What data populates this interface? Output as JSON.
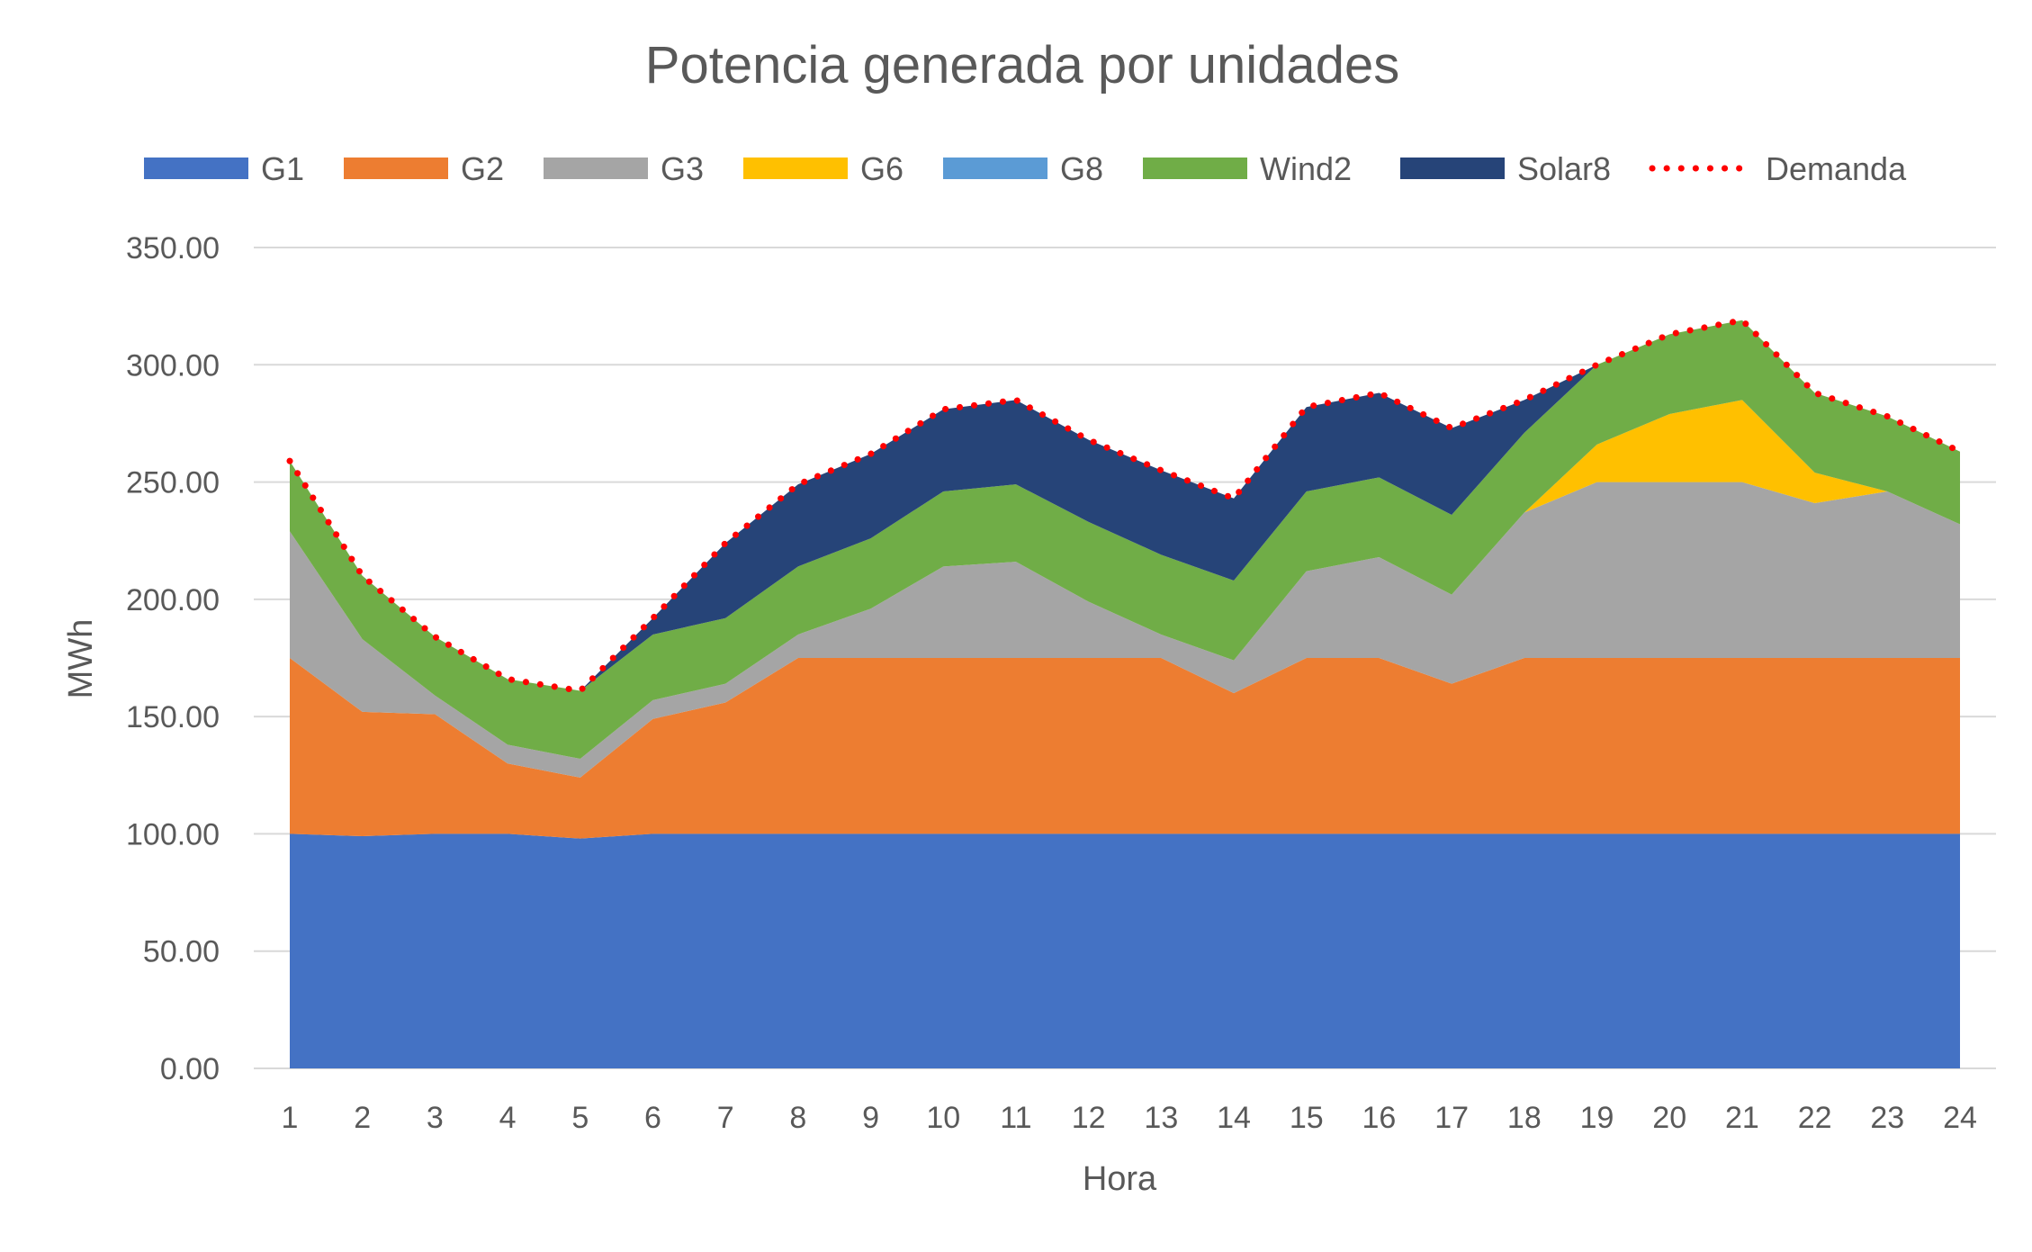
{
  "chart_data": {
    "type": "area",
    "stacked": true,
    "title": "Potencia generada por unidades",
    "xlabel": "Hora",
    "ylabel": "MWh",
    "ylim": [
      0,
      350
    ],
    "ytick_step": 50,
    "yticks": [
      "0.00",
      "50.00",
      "100.00",
      "150.00",
      "200.00",
      "250.00",
      "300.00",
      "350.00"
    ],
    "grid": true,
    "legend_position": "top",
    "categories": [
      "1",
      "2",
      "3",
      "4",
      "5",
      "6",
      "7",
      "8",
      "9",
      "10",
      "11",
      "12",
      "13",
      "14",
      "15",
      "16",
      "17",
      "18",
      "19",
      "20",
      "21",
      "22",
      "23",
      "24"
    ],
    "series": [
      {
        "name": "G1",
        "color": "#4472c4",
        "values": [
          100,
          99,
          100,
          100,
          98,
          100,
          100,
          100,
          100,
          100,
          100,
          100,
          100,
          100,
          100,
          100,
          100,
          100,
          100,
          100,
          100,
          100,
          100,
          100
        ]
      },
      {
        "name": "G2",
        "color": "#ed7d31",
        "values": [
          75,
          53,
          51,
          30,
          26,
          49,
          56,
          75,
          75,
          75,
          75,
          75,
          75,
          60,
          75,
          75,
          64,
          75,
          75,
          75,
          75,
          75,
          75,
          75
        ]
      },
      {
        "name": "G3",
        "color": "#a5a5a5",
        "values": [
          54,
          31,
          8,
          8,
          8,
          8,
          8,
          10,
          21,
          39,
          41,
          24,
          10,
          14,
          37,
          43,
          38,
          62,
          75,
          75,
          75,
          66,
          71,
          57
        ]
      },
      {
        "name": "G6",
        "color": "#ffc000",
        "values": [
          0,
          0,
          0,
          0,
          0,
          0,
          0,
          0,
          0,
          0,
          0,
          0,
          0,
          0,
          0,
          0,
          0,
          0,
          16,
          29,
          35,
          13,
          0,
          0
        ]
      },
      {
        "name": "G8",
        "color": "#5b9bd5",
        "values": [
          0,
          0,
          0,
          0,
          0,
          0,
          0,
          0,
          0,
          0,
          0,
          0,
          0,
          0,
          0,
          0,
          0,
          0,
          0,
          0,
          0,
          0,
          0,
          0
        ]
      },
      {
        "name": "Wind2",
        "color": "#70ad47",
        "values": [
          30,
          27,
          25,
          28,
          29,
          28,
          28,
          29,
          30,
          32,
          33,
          34,
          34,
          34,
          34,
          34,
          34,
          34,
          34,
          34,
          34,
          34,
          32,
          31
        ]
      },
      {
        "name": "Solar8",
        "color": "#264478",
        "values": [
          0,
          0,
          0,
          0,
          0,
          7,
          32,
          35,
          36,
          35,
          36,
          35,
          36,
          35,
          36,
          36,
          37,
          14,
          0,
          0,
          0,
          0,
          0,
          0
        ]
      }
    ],
    "line_series": {
      "name": "Demanda",
      "color": "#ff0000",
      "style": "dotted",
      "values": [
        259,
        210,
        184,
        166,
        161,
        192,
        224,
        249,
        262,
        281,
        285,
        268,
        255,
        243,
        282,
        288,
        273,
        285,
        300,
        313,
        319,
        288,
        278,
        263
      ]
    }
  }
}
